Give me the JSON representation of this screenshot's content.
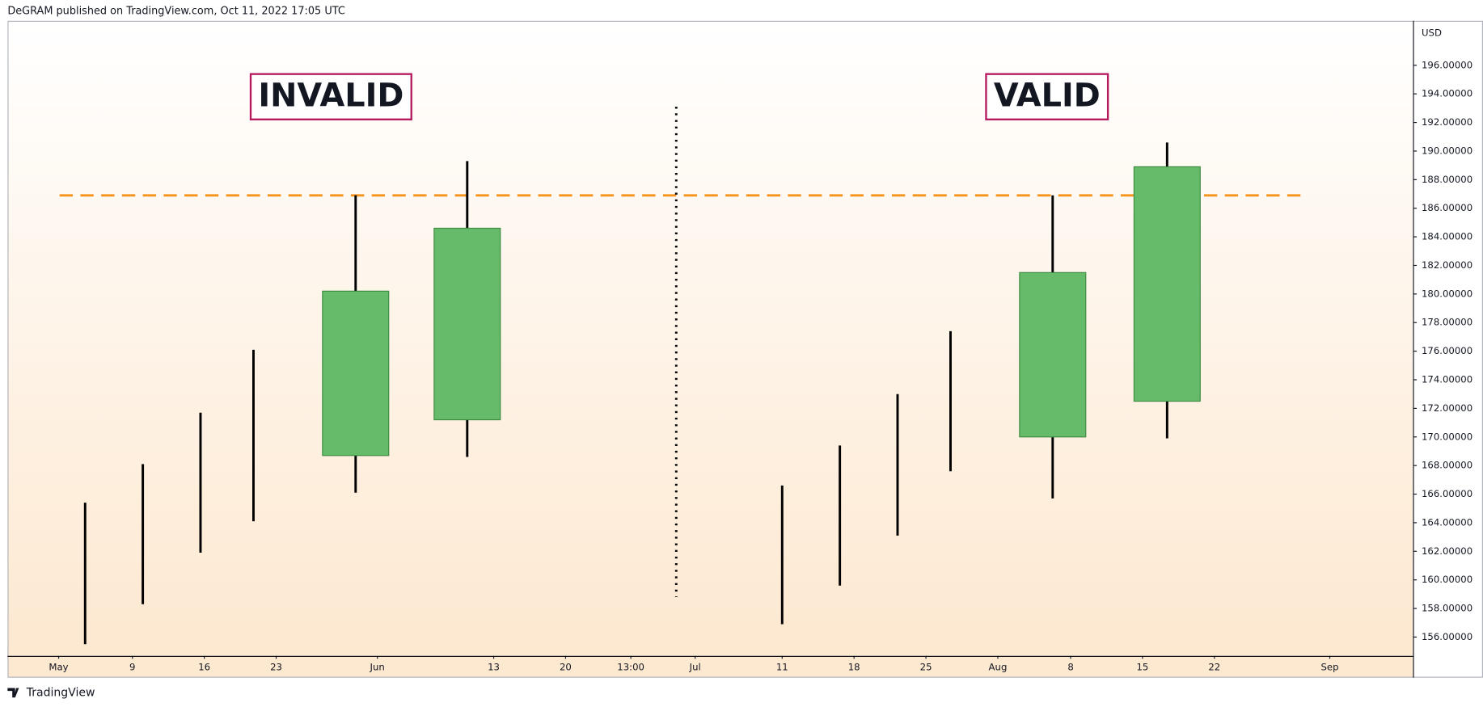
{
  "header": "DeGRAM published on TradingView.com, Oct 11, 2022 17:05 UTC",
  "footer": "TradingView",
  "chart_data": {
    "type": "candlestick",
    "currency": "USD",
    "x": [
      8.2,
      14.3,
      20.4,
      26.0,
      36.8,
      48.6,
      81.9,
      88.0,
      94.1,
      99.7,
      110.5,
      122.6
    ],
    "open": [
      null,
      null,
      null,
      null,
      168.7,
      171.2,
      null,
      null,
      null,
      null,
      170.0,
      172.5
    ],
    "high": [
      165.4,
      168.1,
      171.7,
      176.1,
      186.9,
      189.3,
      166.6,
      169.4,
      173.0,
      177.4,
      186.9,
      190.6
    ],
    "low": [
      155.5,
      158.3,
      161.9,
      164.1,
      166.1,
      168.6,
      156.9,
      159.6,
      163.1,
      167.6,
      165.7,
      169.9
    ],
    "close": [
      null,
      null,
      null,
      null,
      180.2,
      184.6,
      null,
      null,
      null,
      null,
      181.5,
      188.9
    ],
    "color": "#66bb6a",
    "border_color": "#3d8b40",
    "wick_color": "#000000",
    "xlim": [
      0,
      148.6
    ],
    "ylim": [
      154.68,
      199.11
    ],
    "grid": false,
    "xticks": [
      {
        "value": 5.4,
        "label": "May"
      },
      {
        "value": 13.2,
        "label": "9"
      },
      {
        "value": 20.8,
        "label": "16"
      },
      {
        "value": 28.4,
        "label": "23"
      },
      {
        "value": 39.1,
        "label": "Jun"
      },
      {
        "value": 51.4,
        "label": "13"
      },
      {
        "value": 59.0,
        "label": "20"
      },
      {
        "value": 65.9,
        "label": "13:00"
      },
      {
        "value": 72.7,
        "label": "Jul"
      },
      {
        "value": 81.9,
        "label": "11"
      },
      {
        "value": 89.5,
        "label": "18"
      },
      {
        "value": 97.1,
        "label": "25"
      },
      {
        "value": 104.7,
        "label": "Aug"
      },
      {
        "value": 112.4,
        "label": "8"
      },
      {
        "value": 120.0,
        "label": "15"
      },
      {
        "value": 127.6,
        "label": "22"
      },
      {
        "value": 139.8,
        "label": "Sep"
      }
    ],
    "yticks": [
      {
        "value": 156,
        "label": "156.00000"
      },
      {
        "value": 158,
        "label": "158.00000"
      },
      {
        "value": 160,
        "label": "160.00000"
      },
      {
        "value": 162,
        "label": "162.00000"
      },
      {
        "value": 164,
        "label": "164.00000"
      },
      {
        "value": 166,
        "label": "166.00000"
      },
      {
        "value": 168,
        "label": "168.00000"
      },
      {
        "value": 170,
        "label": "170.00000"
      },
      {
        "value": 172,
        "label": "172.00000"
      },
      {
        "value": 174,
        "label": "174.00000"
      },
      {
        "value": 176,
        "label": "176.00000"
      },
      {
        "value": 178,
        "label": "178.00000"
      },
      {
        "value": 180,
        "label": "180.00000"
      },
      {
        "value": 182,
        "label": "182.00000"
      },
      {
        "value": 184,
        "label": "184.00000"
      },
      {
        "value": 186,
        "label": "186.00000"
      },
      {
        "value": 188,
        "label": "188.00000"
      },
      {
        "value": 190,
        "label": "190.00000"
      },
      {
        "value": 192,
        "label": "192.00000"
      },
      {
        "value": 194,
        "label": "194.00000"
      },
      {
        "value": 196,
        "label": "196.00000"
      }
    ],
    "hline": {
      "value": 186.9,
      "x": [
        5.5,
        136.8
      ],
      "color": "#f7931a"
    },
    "vline": {
      "x": 70.7,
      "y": [
        158.8,
        193.1
      ],
      "color": "#000000"
    },
    "annotations": [
      {
        "text": "INVALID",
        "x": 34.2,
        "y": 193.8,
        "border": "#b5195b"
      },
      {
        "text": "VALID",
        "x": 109.9,
        "y": 193.8,
        "border": "#b5195b"
      }
    ]
  }
}
